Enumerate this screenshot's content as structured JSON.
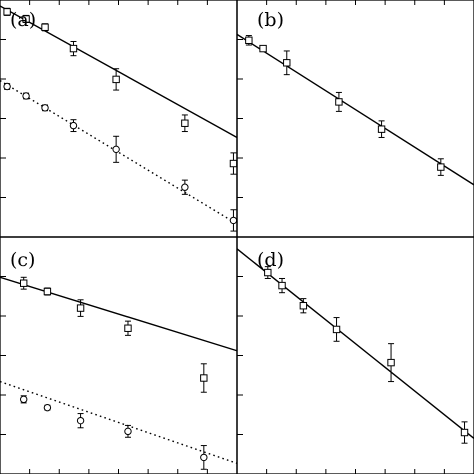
{
  "chart_data": [
    {
      "panel": "(a)",
      "type": "scatter",
      "xlim": [
        0,
        10
      ],
      "ylim": [
        0,
        10
      ],
      "series": [
        {
          "marker": "square",
          "x": [
            0.3,
            1.1,
            1.9,
            3.1,
            4.9,
            7.8,
            9.85
          ],
          "y": [
            9.5,
            9.2,
            8.85,
            7.95,
            6.65,
            4.8,
            3.1
          ],
          "err": [
            0.15,
            0.15,
            0.15,
            0.3,
            0.45,
            0.35,
            0.45
          ],
          "fit": {
            "line": "solid",
            "x": [
              0,
              10
            ],
            "y": [
              9.75,
              4.2
            ]
          }
        },
        {
          "marker": "circle",
          "x": [
            0.3,
            1.1,
            1.9,
            3.1,
            4.9,
            7.8,
            9.85
          ],
          "y": [
            6.35,
            5.95,
            5.45,
            4.7,
            3.7,
            2.1,
            0.7
          ],
          "err": [
            0.12,
            0.12,
            0.12,
            0.25,
            0.55,
            0.3,
            0.45
          ],
          "fit": {
            "line": "dotted",
            "x": [
              0,
              10
            ],
            "y": [
              6.6,
              0.55
            ]
          }
        }
      ]
    },
    {
      "panel": "(b)",
      "type": "scatter",
      "xlim": [
        0,
        10
      ],
      "ylim": [
        0,
        10
      ],
      "series": [
        {
          "marker": "square",
          "x": [
            0.5,
            1.1,
            2.1,
            4.3,
            6.1,
            8.6
          ],
          "y": [
            8.3,
            7.95,
            7.35,
            5.7,
            4.55,
            2.95
          ],
          "err": [
            0.2,
            0.12,
            0.5,
            0.4,
            0.35,
            0.35
          ],
          "fit": {
            "line": "solid",
            "x": [
              0,
              10
            ],
            "y": [
              8.55,
              2.2
            ]
          }
        }
      ]
    },
    {
      "panel": "(c)",
      "type": "scatter",
      "xlim": [
        0,
        10
      ],
      "ylim": [
        0,
        10
      ],
      "series": [
        {
          "marker": "square",
          "x": [
            1.0,
            2.0,
            3.4,
            5.4,
            8.6
          ],
          "y": [
            8.05,
            7.7,
            7.0,
            6.15,
            4.05
          ],
          "err": [
            0.25,
            0.15,
            0.35,
            0.3,
            0.6
          ],
          "fit": {
            "line": "solid",
            "x": [
              0,
              10
            ],
            "y": [
              8.3,
              5.2
            ]
          }
        },
        {
          "marker": "circle",
          "x": [
            1.0,
            2.0,
            3.4,
            5.4,
            8.6
          ],
          "y": [
            3.15,
            2.8,
            2.25,
            1.8,
            0.7
          ],
          "err": [
            0.15,
            0.1,
            0.3,
            0.25,
            0.5
          ],
          "fit": {
            "line": "dotted",
            "x": [
              0,
              10
            ],
            "y": [
              3.9,
              0.45
            ]
          }
        }
      ]
    },
    {
      "panel": "(d)",
      "type": "scatter",
      "xlim": [
        0,
        10
      ],
      "ylim": [
        0,
        10
      ],
      "series": [
        {
          "marker": "square",
          "x": [
            1.3,
            1.9,
            2.8,
            4.2,
            6.5,
            9.6
          ],
          "y": [
            8.5,
            7.95,
            7.1,
            6.1,
            4.7,
            1.75
          ],
          "err": [
            0.25,
            0.3,
            0.3,
            0.5,
            0.8,
            0.45
          ],
          "fit": {
            "line": "solid",
            "x": [
              0,
              10
            ],
            "y": [
              9.5,
              1.5
            ]
          }
        }
      ]
    }
  ]
}
